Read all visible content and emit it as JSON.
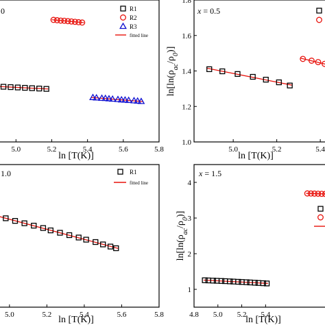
{
  "chart_data": [
    {
      "type": "scatter",
      "panel_label": "0",
      "xlabel": "ln [T(K)]",
      "ylabel": "",
      "xlim": [
        4.88,
        5.8
      ],
      "ylim": [
        1.0,
        1.8
      ],
      "xticks": [
        "5.0",
        "5.2",
        "5.4",
        "5.6",
        "5.8"
      ],
      "yticks": [],
      "legend": {
        "placement": "top-right",
        "entries": [
          "R1",
          "R2",
          "R3",
          "fitted line"
        ]
      },
      "series": [
        {
          "name": "R1",
          "marker": "square",
          "color": "#000000",
          "fit": true,
          "x": [
            4.89,
            4.93,
            4.97,
            5.01,
            5.05,
            5.09,
            5.13,
            5.17
          ],
          "y": [
            1.313,
            1.311,
            1.309,
            1.307,
            1.305,
            1.303,
            1.301,
            1.299
          ]
        },
        {
          "name": "R2",
          "marker": "circle",
          "color": "#e8120c",
          "fit": true,
          "x": [
            5.21,
            5.23,
            5.25,
            5.27,
            5.29,
            5.31,
            5.33,
            5.35,
            5.37
          ],
          "y": [
            1.688,
            1.686,
            1.684,
            1.683,
            1.681,
            1.679,
            1.677,
            1.675,
            1.673
          ]
        },
        {
          "name": "R3",
          "marker": "triangle",
          "color": "#1010d0",
          "fit": true,
          "x": [
            5.43,
            5.45,
            5.48,
            5.5,
            5.52,
            5.54,
            5.57,
            5.59,
            5.61,
            5.63,
            5.66,
            5.68,
            5.7
          ],
          "y": [
            1.25,
            1.248,
            1.246,
            1.245,
            1.243,
            1.241,
            1.239,
            1.237,
            1.236,
            1.234,
            1.232,
            1.23,
            1.228
          ]
        }
      ]
    },
    {
      "type": "scatter",
      "annotation": "x = 0.5",
      "xlabel": "ln [T(K)]",
      "ylabel": "ln[ln(ρac/ρ0)]",
      "xlim": [
        4.82,
        5.45
      ],
      "ylim": [
        1.0,
        1.8
      ],
      "xticks": [
        "5.0",
        "5.2",
        "5.4"
      ],
      "yticks": [
        "1.0",
        "1.2",
        "1.4",
        "1.6",
        "1.8"
      ],
      "series": [
        {
          "name": "R1",
          "marker": "square",
          "color": "#000000",
          "fit": true,
          "x": [
            4.89,
            4.95,
            5.02,
            5.09,
            5.15,
            5.21,
            5.26
          ],
          "y": [
            1.41,
            1.398,
            1.383,
            1.367,
            1.351,
            1.336,
            1.318
          ]
        },
        {
          "name": "R2",
          "marker": "circle",
          "color": "#e8120c",
          "fit": true,
          "x": [
            5.32,
            5.36,
            5.39,
            5.42,
            5.44
          ],
          "y": [
            1.468,
            1.458,
            1.45,
            1.44,
            1.432
          ]
        }
      ]
    },
    {
      "type": "scatter",
      "panel_label": "1.0",
      "xlabel": "ln [T(K)]",
      "ylabel": "",
      "xlim": [
        4.92,
        5.8
      ],
      "ylim": [
        0,
        6
      ],
      "xticks": [
        "5.0",
        "5.2",
        "5.4",
        "5.6",
        "5.8"
      ],
      "yticks": [],
      "legend": {
        "placement": "top-right",
        "entries": [
          "R1",
          "fitted line"
        ]
      },
      "series": [
        {
          "name": "R1",
          "marker": "square",
          "color": "#000000",
          "fit": true,
          "x": [
            4.93,
            4.98,
            5.03,
            5.08,
            5.13,
            5.18,
            5.22,
            5.27,
            5.32,
            5.37,
            5.41,
            5.46,
            5.5,
            5.54,
            5.57
          ],
          "y": [
            3.84,
            3.74,
            3.63,
            3.53,
            3.43,
            3.33,
            3.23,
            3.13,
            3.03,
            2.93,
            2.84,
            2.74,
            2.64,
            2.55,
            2.48
          ]
        }
      ]
    },
    {
      "type": "scatter",
      "annotation": "x = 1.5",
      "xlabel": "ln [T(K)]",
      "ylabel": "ln[ln(ρac/ρ0)]",
      "xlim": [
        4.8,
        5.95
      ],
      "ylim": [
        0.5,
        4.5
      ],
      "xticks": [
        "4.8",
        "5.0",
        "5.2",
        "5.4"
      ],
      "yticks": [
        "1",
        "2",
        "3",
        "4"
      ],
      "series": [
        {
          "name": "R1",
          "marker": "square",
          "color": "#000000",
          "fit": true,
          "x": [
            4.89,
            4.92,
            4.96,
            4.99,
            5.03,
            5.06,
            5.1,
            5.13,
            5.17,
            5.2,
            5.24,
            5.27,
            5.31,
            5.34,
            5.38,
            5.41
          ],
          "y": [
            1.255,
            1.25,
            1.245,
            1.24,
            1.235,
            1.23,
            1.224,
            1.218,
            1.212,
            1.206,
            1.2,
            1.193,
            1.186,
            1.179,
            1.172,
            1.165
          ]
        },
        {
          "name": "R2",
          "marker": "circle",
          "color": "#e8120c",
          "fit": true,
          "x": [
            5.75,
            5.78,
            5.81,
            5.84,
            5.87,
            5.9,
            5.93
          ],
          "y": [
            3.69,
            3.688,
            3.685,
            3.682,
            3.679,
            3.676,
            3.673
          ]
        }
      ]
    }
  ]
}
